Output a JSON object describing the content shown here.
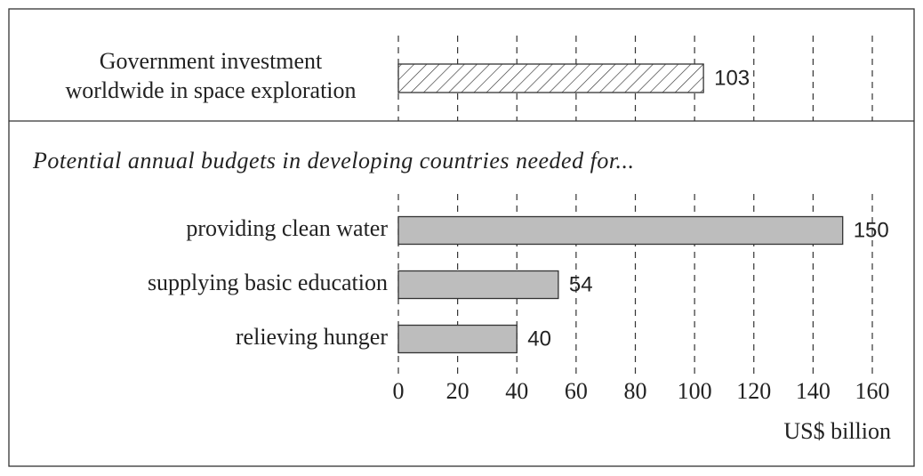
{
  "chart_data": [
    {
      "type": "bar",
      "orientation": "horizontal",
      "categories": [
        "Government investment worldwide in space exploration"
      ],
      "values": [
        103
      ],
      "fill": "hatch",
      "xlim": [
        0,
        160
      ],
      "xticks": [
        0,
        20,
        40,
        60,
        80,
        100,
        120,
        140,
        160
      ],
      "grid": true
    },
    {
      "type": "bar",
      "orientation": "horizontal",
      "subtitle": "Potential annual budgets in developing countries needed for...",
      "categories": [
        "providing clean water",
        "supplying basic education",
        "relieving hunger"
      ],
      "values": [
        150,
        54,
        40
      ],
      "color": "#bdbdbd",
      "xlim": [
        0,
        160
      ],
      "xticks": [
        0,
        20,
        40,
        60,
        80,
        100,
        120,
        140,
        160
      ],
      "grid": true,
      "xlabel": "US$ billion"
    }
  ]
}
